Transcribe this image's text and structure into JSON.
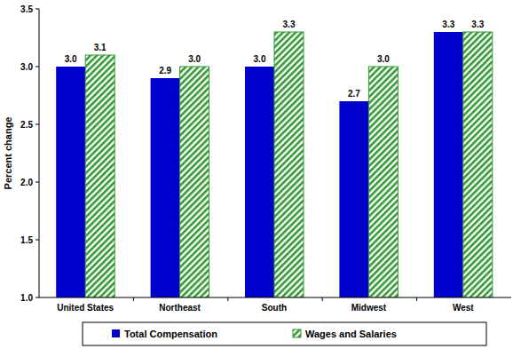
{
  "chart_data": {
    "type": "bar",
    "y_label": "Percent change",
    "categories": [
      "United States",
      "Northeast",
      "South",
      "Midwest",
      "West"
    ],
    "series": [
      {
        "name": "Total Compensation",
        "color": "#0000cc",
        "values": [
          3.0,
          2.9,
          3.0,
          2.7,
          3.3
        ],
        "value_labels": [
          "3.0",
          "2.9",
          "3.0",
          "2.7",
          "3.3"
        ]
      },
      {
        "name": "Wages and Salaries",
        "color": "#339933",
        "values": [
          3.1,
          3.0,
          3.3,
          3.0,
          3.3
        ],
        "value_labels": [
          "3.1",
          "3.0",
          "3.3",
          "3.0",
          "3.3"
        ]
      }
    ],
    "ylim": [
      1.0,
      3.5
    ],
    "yticks": [
      {
        "value": 1.0,
        "label": "1.0"
      },
      1.5,
      {
        "value": 2.0,
        "label": "2.0"
      },
      2.5,
      {
        "value": 3.0,
        "label": "3.0"
      },
      3.5
    ],
    "grid": false,
    "legend": "bottom",
    "data_labels": true
  }
}
